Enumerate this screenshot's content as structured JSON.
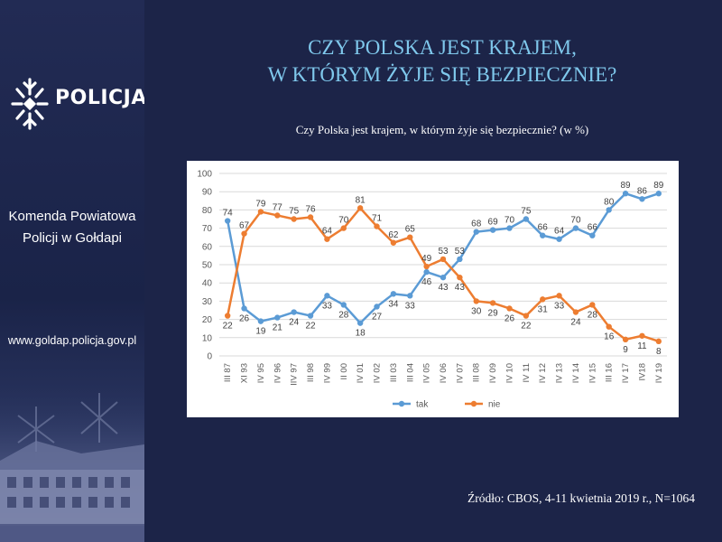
{
  "sidebar": {
    "logo_text": "POLICJA",
    "unit_line1": "Komenda Powiatowa",
    "unit_line2": "Policji w Gołdapi",
    "website": "www.goldap.policja.gov.pl"
  },
  "title_line1": "CZY POLSKA JEST KRAJEM,",
  "title_line2": "W KTÓRYM ŻYJE SIĘ BEZPIECZNIE?",
  "subtitle": "Czy Polska jest krajem, w którym żyje się bezpiecznie? (w %)",
  "source": "Źródło: CBOS, 4-11 kwietnia 2019 r., N=1064",
  "chart_data": {
    "type": "line",
    "title": "",
    "xlabel": "",
    "ylabel": "",
    "categories": [
      "III 87",
      "XI 93",
      "IV 95",
      "IV 96",
      "IIV 97",
      "III 98",
      "IV 99",
      "II 00",
      "IV 01",
      "IV 02",
      "III 03",
      "III 04",
      "IV 05",
      "IV 06",
      "IV 07",
      "III 08",
      "IV 09",
      "IV 10",
      "IV 11",
      "IV 12",
      "IV 13",
      "IV 14",
      "IV 15",
      "III 16",
      "IV 17",
      "IV18",
      "IV 19"
    ],
    "ylim": [
      0,
      100
    ],
    "yticks": [
      0,
      10,
      20,
      30,
      40,
      50,
      60,
      70,
      80,
      90,
      100
    ],
    "grid": true,
    "legend_position": "bottom",
    "series": [
      {
        "name": "tak",
        "color": "#5b9bd5",
        "values": [
          74,
          26,
          19,
          21,
          24,
          22,
          33,
          28,
          18,
          27,
          34,
          33,
          46,
          43,
          53,
          68,
          69,
          70,
          75,
          66,
          64,
          70,
          66,
          80,
          89,
          86,
          89
        ]
      },
      {
        "name": "nie",
        "color": "#ed7d31",
        "values": [
          22,
          67,
          79,
          77,
          75,
          76,
          64,
          70,
          81,
          71,
          62,
          65,
          49,
          53,
          43,
          30,
          29,
          26,
          22,
          31,
          33,
          24,
          28,
          16,
          9,
          11,
          8
        ]
      }
    ]
  }
}
